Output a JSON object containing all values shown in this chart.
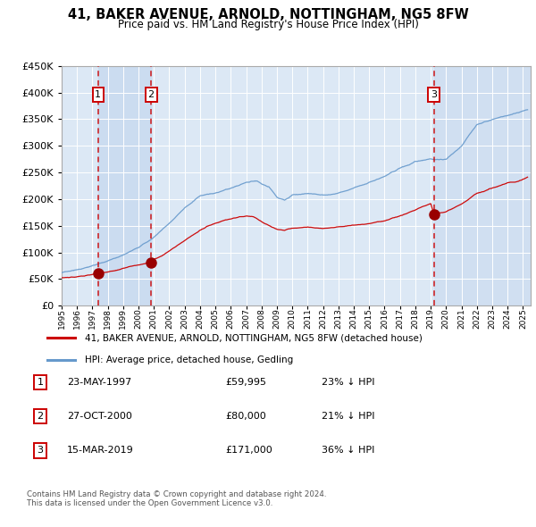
{
  "title": "41, BAKER AVENUE, ARNOLD, NOTTINGHAM, NG5 8FW",
  "subtitle": "Price paid vs. HM Land Registry's House Price Index (HPI)",
  "legend_line1": "41, BAKER AVENUE, ARNOLD, NOTTINGHAM, NG5 8FW (detached house)",
  "legend_line2": "HPI: Average price, detached house, Gedling",
  "footer_line1": "Contains HM Land Registry data © Crown copyright and database right 2024.",
  "footer_line2": "This data is licensed under the Open Government Licence v3.0.",
  "sale_color": "#cc0000",
  "hpi_color": "#6699cc",
  "plot_bg_color": "#dce8f5",
  "shade_color": "#c5d8ee",
  "marker_color": "#990000",
  "dashed_line_color": "#cc0000",
  "sales": [
    {
      "date_num": 1997.37,
      "price": 59995,
      "label": "1",
      "date_str": "23-MAY-1997",
      "pct": "23% ↓ HPI"
    },
    {
      "date_num": 2000.82,
      "price": 80000,
      "label": "2",
      "date_str": "27-OCT-2000",
      "pct": "21% ↓ HPI"
    },
    {
      "date_num": 2019.2,
      "price": 171000,
      "label": "3",
      "date_str": "15-MAR-2019",
      "pct": "36% ↓ HPI"
    }
  ],
  "ylim": [
    0,
    450000
  ],
  "yticks": [
    0,
    50000,
    100000,
    150000,
    200000,
    250000,
    300000,
    350000,
    400000,
    450000
  ],
  "xlim_start": 1995.0,
  "xlim_end": 2025.5,
  "xtick_years": [
    1995,
    1996,
    1997,
    1998,
    1999,
    2000,
    2001,
    2002,
    2003,
    2004,
    2005,
    2006,
    2007,
    2008,
    2009,
    2010,
    2011,
    2012,
    2013,
    2014,
    2015,
    2016,
    2017,
    2018,
    2019,
    2020,
    2021,
    2022,
    2023,
    2024,
    2025
  ]
}
